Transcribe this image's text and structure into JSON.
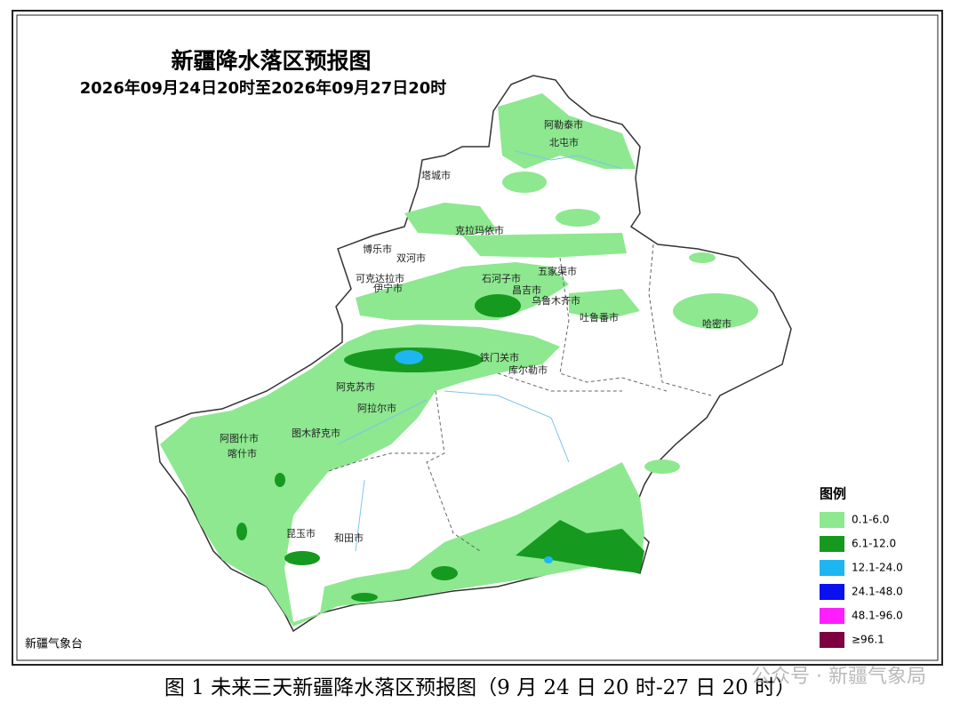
{
  "header": {
    "title": "新疆降水落区预报图",
    "subtitle": "2026年09月24日20时至2026年09月27日20时"
  },
  "cities": [
    "阿勒泰市",
    "北屯市",
    "塔城市",
    "克拉玛依市",
    "博乐市",
    "双河市",
    "可克达拉市",
    "伊宁市",
    "石河子市",
    "五家渠市",
    "昌吉市",
    "乌鲁木齐市",
    "吐鲁番市",
    "哈密市",
    "铁门关市",
    "库尔勒市",
    "阿克苏市",
    "阿拉尔市",
    "图木舒克市",
    "阿图什市",
    "喀什市",
    "昆玉市",
    "和田市"
  ],
  "legend": {
    "title": "图例",
    "items": [
      {
        "label": "0.1-6.0",
        "color": "#8de890"
      },
      {
        "label": "6.1-12.0",
        "color": "#16991f"
      },
      {
        "label": "12.1-24.0",
        "color": "#1eb6f2"
      },
      {
        "label": "24.1-48.0",
        "color": "#0a10ee"
      },
      {
        "label": "48.1-96.0",
        "color": "#ff1eff"
      },
      {
        "label": "≥96.1",
        "color": "#7d0040"
      }
    ]
  },
  "source": "新疆气象台",
  "caption": "图 1 未来三天新疆降水落区预报图（9 月 24 日 20 时-27 日 20 时）",
  "watermark": "公众号 · 新疆气象局"
}
